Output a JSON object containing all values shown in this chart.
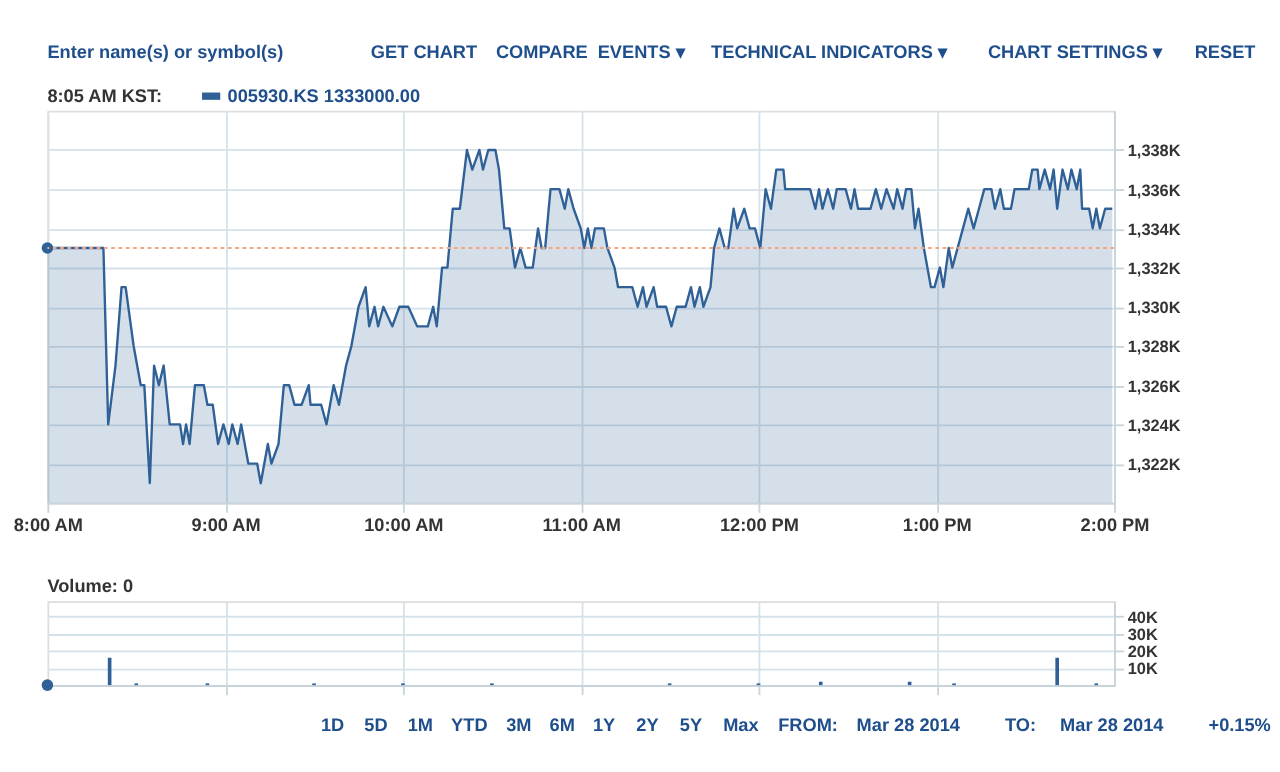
{
  "chart_data": [
    {
      "type": "area",
      "legend": "top left",
      "grid": true,
      "annotations": [
        "Enter name(s) or symbol(s)",
        "GET CHART",
        "COMPARE",
        "EVENTS ▾",
        "TECHNICAL INDICATORS ▾",
        "CHART SETTINGS ▾",
        "RESET",
        "8:05 AM KST:"
      ],
      "xlim": [
        8,
        14
      ],
      "xticks": [
        {
          "value": 8,
          "label": "8:00 AM"
        },
        {
          "value": 9,
          "label": "9:00 AM"
        },
        {
          "value": 10,
          "label": "10:00 AM"
        },
        {
          "value": 11,
          "label": "11:00 AM"
        },
        {
          "value": 12,
          "label": "12:00 PM"
        },
        {
          "value": 13,
          "label": "1:00 PM"
        },
        {
          "value": 14,
          "label": "2:00 PM"
        }
      ],
      "ylim": [
        1320,
        1340
      ],
      "yticks": [
        {
          "value": 1322,
          "label": "1,322K"
        },
        {
          "value": 1324,
          "label": "1,324K"
        },
        {
          "value": 1326,
          "label": "1,326K"
        },
        {
          "value": 1328,
          "label": "1,328K"
        },
        {
          "value": 1330,
          "label": "1,330K"
        },
        {
          "value": 1332,
          "label": "1,332K"
        },
        {
          "value": 1334,
          "label": "1,334K"
        },
        {
          "value": 1336,
          "label": "1,336K"
        },
        {
          "value": 1338,
          "label": "1,338K"
        }
      ],
      "ref_lines": [
        {
          "axis": "y",
          "value": 1333,
          "color": "#f4a582",
          "line_style": "dotted"
        }
      ],
      "series": [
        {
          "name": "005930.KS 1333000.00",
          "color": "#2f6197",
          "x": [
            8.0,
            8.315,
            8.342,
            8.383,
            8.417,
            8.44,
            8.485,
            8.525,
            8.545,
            8.576,
            8.6,
            8.627,
            8.654,
            8.688,
            8.746,
            8.763,
            8.78,
            8.8,
            8.83,
            8.88,
            8.9,
            8.93,
            8.96,
            8.99,
            9.02,
            9.04,
            9.07,
            9.09,
            9.13,
            9.18,
            9.2,
            9.24,
            9.26,
            9.3,
            9.33,
            9.36,
            9.39,
            9.43,
            9.47,
            9.48,
            9.54,
            9.57,
            9.61,
            9.64,
            9.68,
            9.71,
            9.75,
            9.79,
            9.81,
            9.84,
            9.86,
            9.89,
            9.94,
            9.98,
            10.03,
            10.08,
            10.14,
            10.17,
            10.19,
            10.22,
            10.25,
            10.28,
            10.32,
            10.36,
            10.39,
            10.43,
            10.45,
            10.48,
            10.52,
            10.54,
            10.57,
            10.6,
            10.63,
            10.66,
            10.69,
            10.73,
            10.76,
            10.78,
            10.8,
            10.83,
            10.88,
            10.91,
            10.93,
            10.96,
            11.0,
            11.02,
            11.04,
            11.06,
            11.08,
            11.13,
            11.15,
            11.19,
            11.21,
            11.29,
            11.32,
            11.35,
            11.37,
            11.41,
            11.43,
            11.48,
            11.51,
            11.54,
            11.59,
            11.62,
            11.64,
            11.67,
            11.69,
            11.73,
            11.75,
            11.78,
            11.81,
            11.83,
            11.86,
            11.88,
            11.92,
            11.95,
            11.98,
            12.01,
            12.04,
            12.07,
            12.1,
            12.14,
            12.15,
            12.29,
            12.32,
            12.34,
            12.36,
            12.39,
            12.42,
            12.44,
            12.49,
            12.52,
            12.54,
            12.56,
            12.63,
            12.66,
            12.69,
            12.72,
            12.76,
            12.78,
            12.81,
            12.83,
            12.86,
            12.88,
            12.9,
            12.93,
            12.97,
            12.99,
            13.02,
            13.04,
            13.07,
            13.09,
            13.12,
            13.15,
            13.18,
            13.21,
            13.24,
            13.27,
            13.31,
            13.33,
            13.36,
            13.38,
            13.42,
            13.44,
            13.52,
            13.54,
            13.57,
            13.58,
            13.61,
            13.64,
            13.66,
            13.68,
            13.71,
            13.74,
            13.76,
            13.79,
            13.81,
            13.82,
            13.86,
            13.88,
            13.9,
            13.92,
            13.95,
            13.99
          ],
          "values": [
            1333,
            1333,
            1324,
            1327,
            1331,
            1331,
            1328,
            1326,
            1326,
            1321,
            1327,
            1326,
            1327,
            1324,
            1324,
            1323,
            1324,
            1323,
            1326,
            1326,
            1325,
            1325,
            1323,
            1324,
            1323,
            1324,
            1323,
            1324,
            1322,
            1322,
            1321,
            1323,
            1322,
            1323,
            1326,
            1326,
            1325,
            1325,
            1326,
            1325,
            1325,
            1324,
            1326,
            1325,
            1327,
            1328,
            1330,
            1331,
            1329,
            1330,
            1329,
            1330,
            1329,
            1330,
            1330,
            1329,
            1329,
            1330,
            1329,
            1332,
            1332,
            1335,
            1335,
            1338,
            1337,
            1338,
            1337,
            1338,
            1338,
            1337,
            1334,
            1334,
            1332,
            1333,
            1332,
            1332,
            1334,
            1333,
            1333,
            1336,
            1336,
            1335,
            1336,
            1335,
            1334,
            1333,
            1334,
            1333,
            1334,
            1334,
            1333,
            1332,
            1331,
            1331,
            1330,
            1331,
            1330,
            1331,
            1330,
            1330,
            1329,
            1330,
            1330,
            1331,
            1330,
            1331,
            1330,
            1331,
            1333,
            1334,
            1333,
            1333,
            1335,
            1334,
            1335,
            1334,
            1334,
            1333,
            1336,
            1335,
            1337,
            1337,
            1336,
            1336,
            1335,
            1336,
            1335,
            1336,
            1335,
            1336,
            1336,
            1335,
            1336,
            1335,
            1335,
            1336,
            1335,
            1336,
            1335,
            1336,
            1335,
            1336,
            1336,
            1334,
            1335,
            1333,
            1331,
            1331,
            1332,
            1331,
            1333,
            1332,
            1333,
            1334,
            1335,
            1334,
            1335,
            1336,
            1336,
            1335,
            1336,
            1335,
            1335,
            1336,
            1336,
            1337,
            1337,
            1336,
            1337,
            1336,
            1337,
            1335,
            1337,
            1336,
            1337,
            1336,
            1337,
            1335,
            1335,
            1334,
            1335,
            1334,
            1335,
            1335
          ]
        },
        {
          "type": "scatter",
          "marker": "circle",
          "color": "#2f6197",
          "x": [
            8.0
          ],
          "values": [
            1333
          ]
        }
      ]
    },
    {
      "type": "bar",
      "grid": true,
      "tick_labels": "y",
      "annotations": [
        "Volume: 0",
        "1D",
        "5D",
        "1M",
        "YTD",
        "3M",
        "6M",
        "1Y",
        "2Y",
        "5Y",
        "Max",
        "FROM:",
        "Mar 28 2014",
        "TO:",
        "Mar 28 2014",
        "+0.15%"
      ],
      "xlim": [
        8,
        14
      ],
      "xticks": [
        {
          "value": 9,
          "label": null
        },
        {
          "value": 10,
          "label": null
        },
        {
          "value": 11,
          "label": null
        },
        {
          "value": 12,
          "label": null
        },
        {
          "value": 13,
          "label": null
        }
      ],
      "ylim": [
        0,
        49
      ],
      "yticks": [
        {
          "value": 10,
          "label": "10K"
        },
        {
          "value": 20,
          "label": "20K"
        },
        {
          "value": 30,
          "label": "30K"
        },
        {
          "value": 40,
          "label": "40K"
        }
      ],
      "series": [
        {
          "color": "#2f6197",
          "x": [
            8.35,
            8.5,
            8.9,
            9.5,
            10.0,
            10.5,
            11.5,
            12.0,
            12.35,
            12.85,
            13.1,
            13.68,
            13.9
          ],
          "values": [
            16,
            1,
            1,
            1,
            1,
            1,
            1,
            1,
            2,
            2,
            1,
            16,
            1
          ]
        },
        {
          "type": "scatter",
          "marker": "circle",
          "color": "#2f6197",
          "x": [
            8.0
          ],
          "values": [
            0
          ]
        }
      ]
    }
  ]
}
